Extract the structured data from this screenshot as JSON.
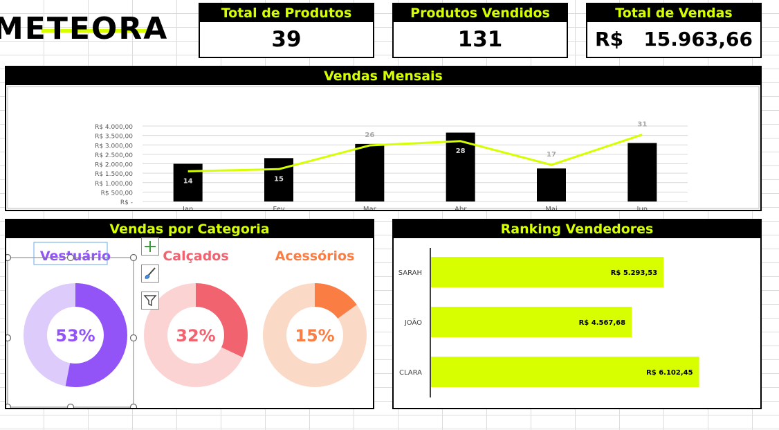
{
  "brand": {
    "name": "METEORA",
    "accent": "#d7ff00"
  },
  "kpis": {
    "produtos": {
      "title": "Total de Produtos",
      "value": "39"
    },
    "vendidos": {
      "title": "Produtos Vendidos",
      "value": "131"
    },
    "vendas": {
      "title": "Total de Vendas",
      "value": "R$   15.963,66"
    }
  },
  "monthly": {
    "title": "Vendas Mensais",
    "chart_data": {
      "type": "bar",
      "categories": [
        "Jan",
        "Fev",
        "Mar",
        "Abr",
        "Mai",
        "Jun"
      ],
      "bar_values": [
        2000,
        2300,
        3050,
        3650,
        1750,
        3100
      ],
      "line_values": [
        14,
        15,
        26,
        28,
        17,
        31
      ],
      "line_labels": [
        "14",
        "15",
        "26",
        "28",
        "17",
        "31"
      ],
      "y_ticks": [
        "R$ -",
        "R$ 500,00",
        "R$ 1.000,00",
        "R$ 1.500,00",
        "R$ 2.000,00",
        "R$ 2.500,00",
        "R$ 3.000,00",
        "R$ 3.500,00",
        "R$ 4.000,00"
      ],
      "ylim": [
        0,
        4000
      ],
      "line_ylim": [
        0,
        35
      ],
      "bar_color": "#000000",
      "line_color": "#d7ff00",
      "grid": true
    }
  },
  "categories": {
    "title": "Vendas por Categoria",
    "chart_data": {
      "type": "pie",
      "items": [
        {
          "name": "Vestuário",
          "value": 53,
          "label": "53%",
          "color": "#9254f7",
          "track": "#dccbfb"
        },
        {
          "name": "Calçados",
          "value": 32,
          "label": "32%",
          "color": "#f0636f",
          "track": "#fbd3d3"
        },
        {
          "name": "Acessórios",
          "value": 15,
          "label": "15%",
          "color": "#fa7e44",
          "track": "#fbd9c7"
        }
      ]
    }
  },
  "ranking": {
    "title": "Ranking Vendedores",
    "chart_data": {
      "type": "bar",
      "orientation": "horizontal",
      "categories": [
        "SARAH",
        "JOÃO",
        "CLARA"
      ],
      "values": [
        5293.53,
        4567.68,
        6102.45
      ],
      "value_labels": [
        "R$ 5.293,53",
        "R$ 4.567,68",
        "R$ 6.102,45"
      ],
      "xlim": [
        0,
        7400
      ],
      "bar_color": "#d7ff00"
    }
  }
}
